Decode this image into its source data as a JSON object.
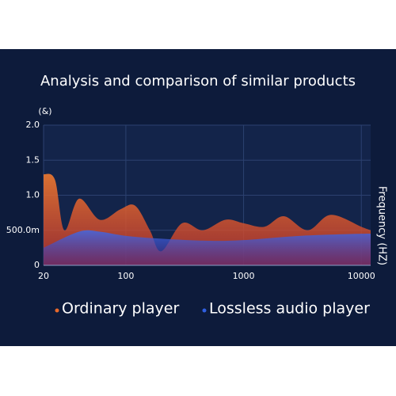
{
  "chart_data": {
    "type": "area",
    "title": "Analysis and comparison of similar products",
    "ylabel": "(&)",
    "xlabel": "Frequency (HZ)",
    "xscale": "log",
    "xlim": [
      20,
      12000
    ],
    "xticks": [
      20,
      100,
      1000,
      10000
    ],
    "ylim": [
      0,
      2
    ],
    "yticks": [
      0,
      {
        "value": 0.5,
        "label": "500.0m"
      },
      {
        "value": 1,
        "label": "1.0"
      },
      1.5,
      {
        "value": 2,
        "label": "2.0"
      }
    ],
    "grid": true,
    "series": [
      {
        "name": "Ordinary player",
        "color": "#e8692a",
        "x": [
          20,
          25,
          30,
          40,
          60,
          90,
          120,
          160,
          200,
          300,
          450,
          700,
          1000,
          1500,
          2200,
          3500,
          5500,
          10000,
          12000
        ],
        "values": [
          1.3,
          1.22,
          0.5,
          0.95,
          0.65,
          0.8,
          0.85,
          0.5,
          0.2,
          0.6,
          0.5,
          0.65,
          0.6,
          0.55,
          0.7,
          0.5,
          0.72,
          0.55,
          0.5
        ]
      },
      {
        "name": "Lossless audio player",
        "color": "#2f5fe0",
        "x": [
          20,
          40,
          60,
          100,
          200,
          500,
          1000,
          3000,
          10000,
          12000
        ],
        "values": [
          0.25,
          0.48,
          0.48,
          0.42,
          0.38,
          0.35,
          0.36,
          0.42,
          0.45,
          0.45
        ]
      }
    ]
  }
}
